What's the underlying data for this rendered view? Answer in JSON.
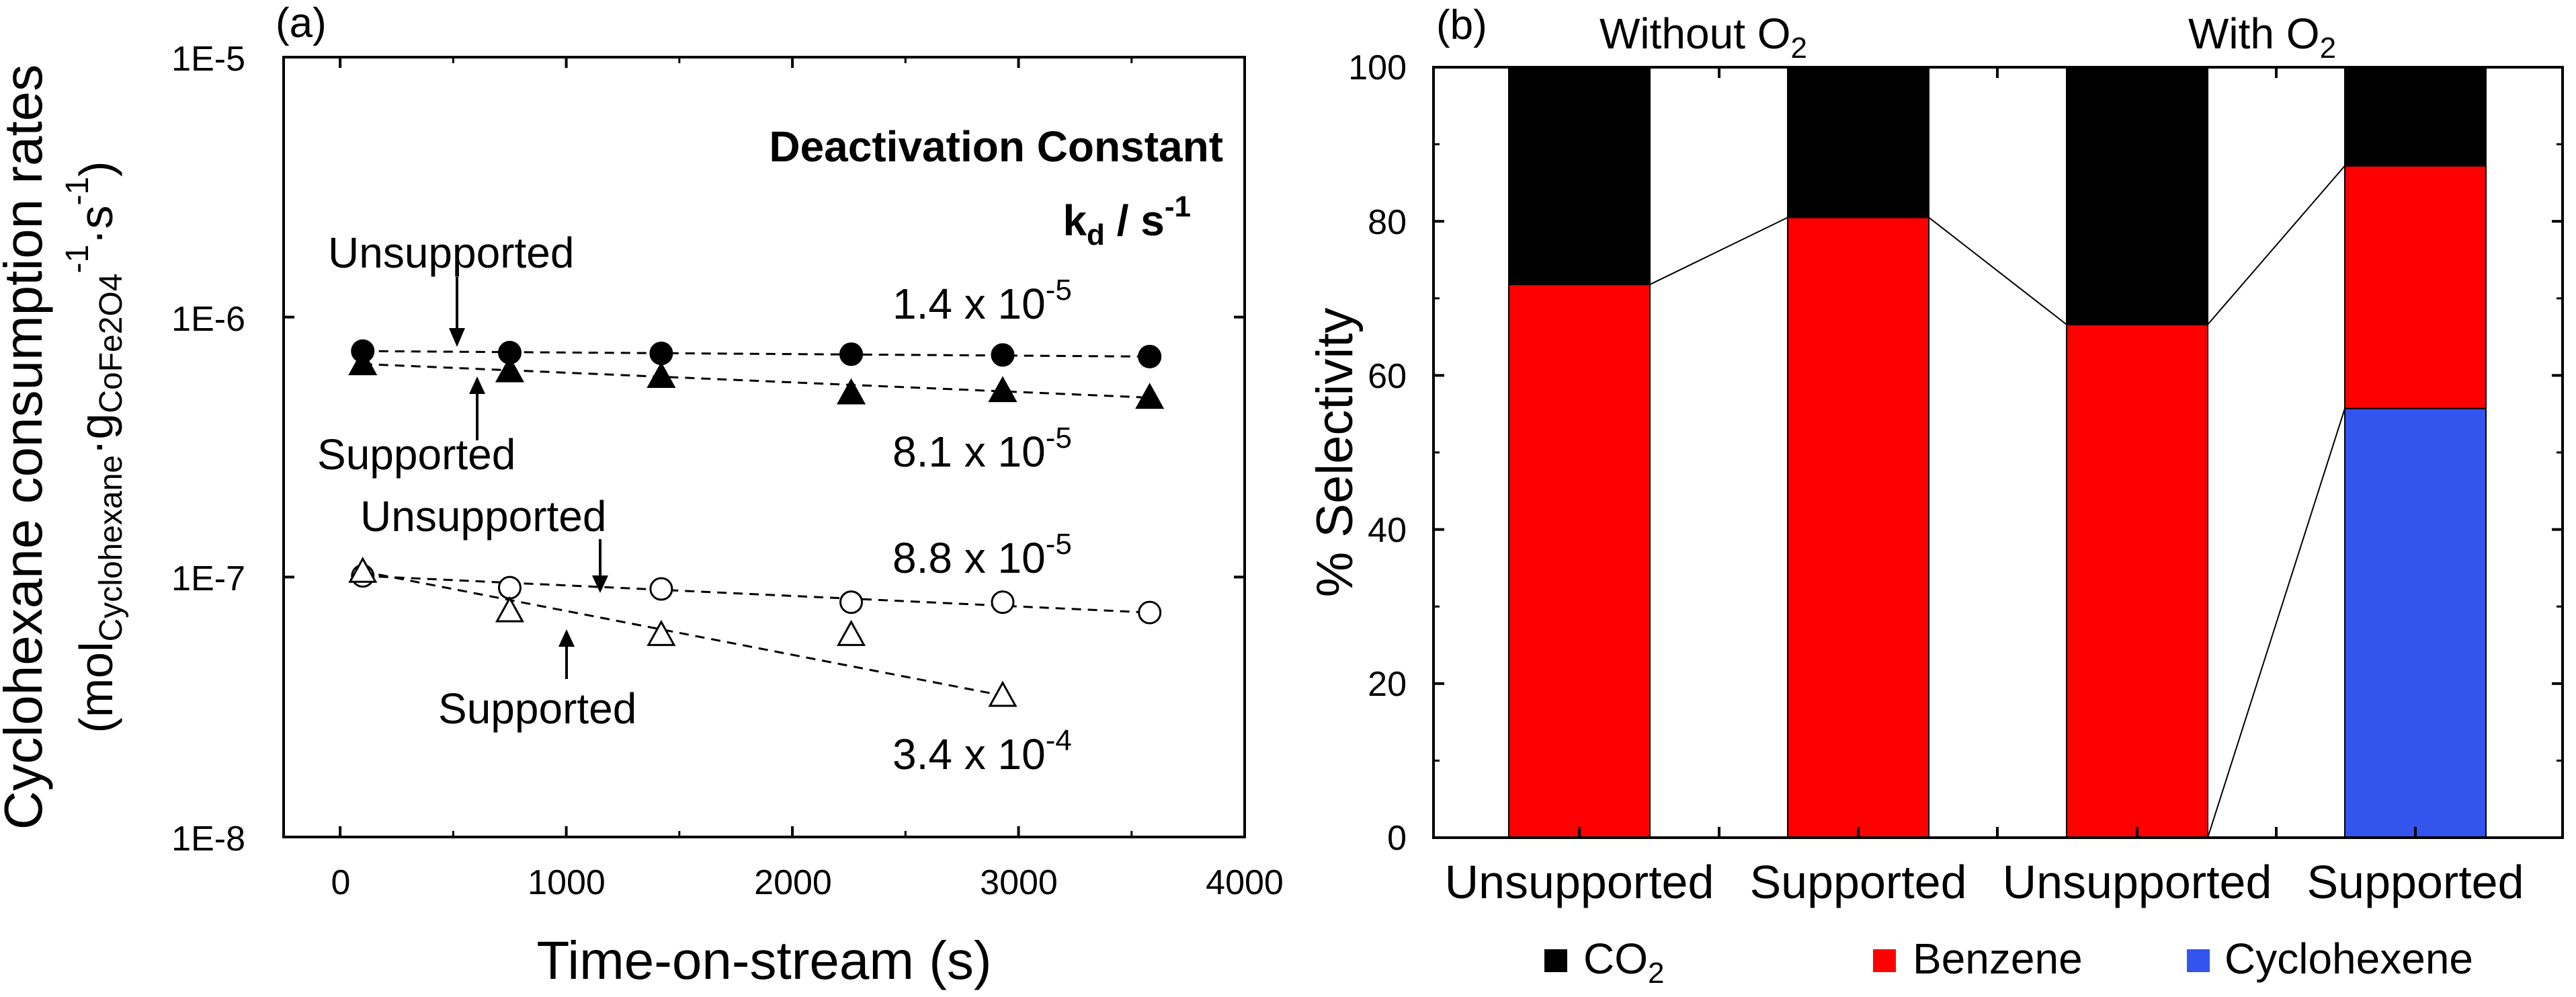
{
  "chart_data": [
    {
      "panel": "(a)",
      "type": "scatter",
      "xlabel": "Time-on-stream (s)",
      "ylabel_line1": "Cyclohexane consumption rates",
      "ylabel_line2": "(mol",
      "ylabel_sub_cyclohexane": "Cyclohexane",
      "ylabel_g": "·g",
      "ylabel_sub_cofe": "CoFe2O4",
      "ylabel_exp_neg1": "-1",
      "ylabel_s": "·s",
      "ylabel_close": ")",
      "xlim": [
        -250,
        4000
      ],
      "xticks": [
        0,
        1000,
        2000,
        3000,
        4000
      ],
      "xtick_labels": [
        "0",
        "1000",
        "2000",
        "3000",
        "4000"
      ],
      "ylim": [
        1e-08,
        1e-05
      ],
      "yscale": "log",
      "yticks": [
        1e-08,
        1e-07,
        1e-06,
        1e-05
      ],
      "ytick_labels": [
        "1E-8",
        "1E-7",
        "1E-6",
        "1E-5"
      ],
      "series": [
        {
          "name": "Unsupported (with O2)",
          "marker": "filled-circle",
          "x": [
            100,
            750,
            1420,
            2260,
            2930,
            3580
          ],
          "y": [
            7.4e-07,
            7.3e-07,
            7.25e-07,
            7.2e-07,
            7.15e-07,
            7.05e-07
          ]
        },
        {
          "name": "Supported (with O2)",
          "marker": "filled-triangle",
          "x": [
            100,
            750,
            1420,
            2260,
            2930,
            3580
          ],
          "y": [
            6.6e-07,
            6.2e-07,
            5.9e-07,
            5.1e-07,
            5.2e-07,
            4.9e-07
          ]
        },
        {
          "name": "Unsupported (without O2)",
          "marker": "open-circle",
          "x": [
            100,
            750,
            1420,
            2260,
            2930,
            3580
          ],
          "y": [
            1.01e-07,
            9.1e-08,
            9e-08,
            8e-08,
            8e-08,
            7.3e-08
          ]
        },
        {
          "name": "Supported (without O2)",
          "marker": "open-triangle",
          "x": [
            100,
            750,
            1420,
            2260,
            2930
          ],
          "y": [
            1.05e-07,
            7.4e-08,
            6e-08,
            6e-08,
            3.5e-08
          ]
        }
      ],
      "fit_lines": [
        {
          "x": [
            100,
            3580
          ],
          "y": [
            7.4e-07,
            7.05e-07
          ]
        },
        {
          "x": [
            100,
            3580
          ],
          "y": [
            6.6e-07,
            4.9e-07
          ]
        },
        {
          "x": [
            100,
            3580
          ],
          "y": [
            1.01e-07,
            7.3e-08
          ]
        },
        {
          "x": [
            100,
            2930
          ],
          "y": [
            1.05e-07,
            3.5e-08
          ]
        }
      ],
      "header_line1": "Deactivation Constant",
      "header_k": "k",
      "header_sub": "d",
      "header_unit": " / s",
      "header_exp": "-1",
      "kd_values": [
        {
          "mantissa": "1.4 x 10",
          "exponent": "-5"
        },
        {
          "mantissa": "8.1 x 10",
          "exponent": "-5"
        },
        {
          "mantissa": "8.8 x 10",
          "exponent": "-5"
        },
        {
          "mantissa": "3.4 x 10",
          "exponent": "-4"
        }
      ],
      "annotations": [
        "Unsupported",
        "Supported",
        "Unsupported",
        "Supported"
      ]
    },
    {
      "panel": "(b)",
      "type": "stacked-bar",
      "ylabel": "% Selectivity",
      "ylim": [
        0,
        100
      ],
      "yticks": [
        0,
        20,
        40,
        60,
        80,
        100
      ],
      "ytick_labels": [
        "0",
        "20",
        "40",
        "60",
        "80",
        "100"
      ],
      "categories": [
        "Unsupported",
        "Supported",
        "Unsupported",
        "Supported"
      ],
      "group_labels": [
        {
          "text": "Without O",
          "sub": "2"
        },
        {
          "text": "With O",
          "sub": "2"
        }
      ],
      "series": [
        {
          "name": "Cyclohexene",
          "color": "#3355ee",
          "values": [
            0,
            0,
            0,
            55.7
          ]
        },
        {
          "name": "Benzene",
          "color": "#ff0000",
          "values": [
            71.8,
            80.5,
            66.6,
            31.5
          ]
        },
        {
          "name": "CO2",
          "color": "#000000",
          "values": [
            28.2,
            19.5,
            33.4,
            12.8
          ]
        }
      ],
      "legend": [
        {
          "label": "CO",
          "sub": "2",
          "color": "#000000"
        },
        {
          "label": "Benzene",
          "sub": "",
          "color": "#ff0000"
        },
        {
          "label": "Cyclohexene",
          "sub": "",
          "color": "#3355ee"
        }
      ]
    }
  ]
}
